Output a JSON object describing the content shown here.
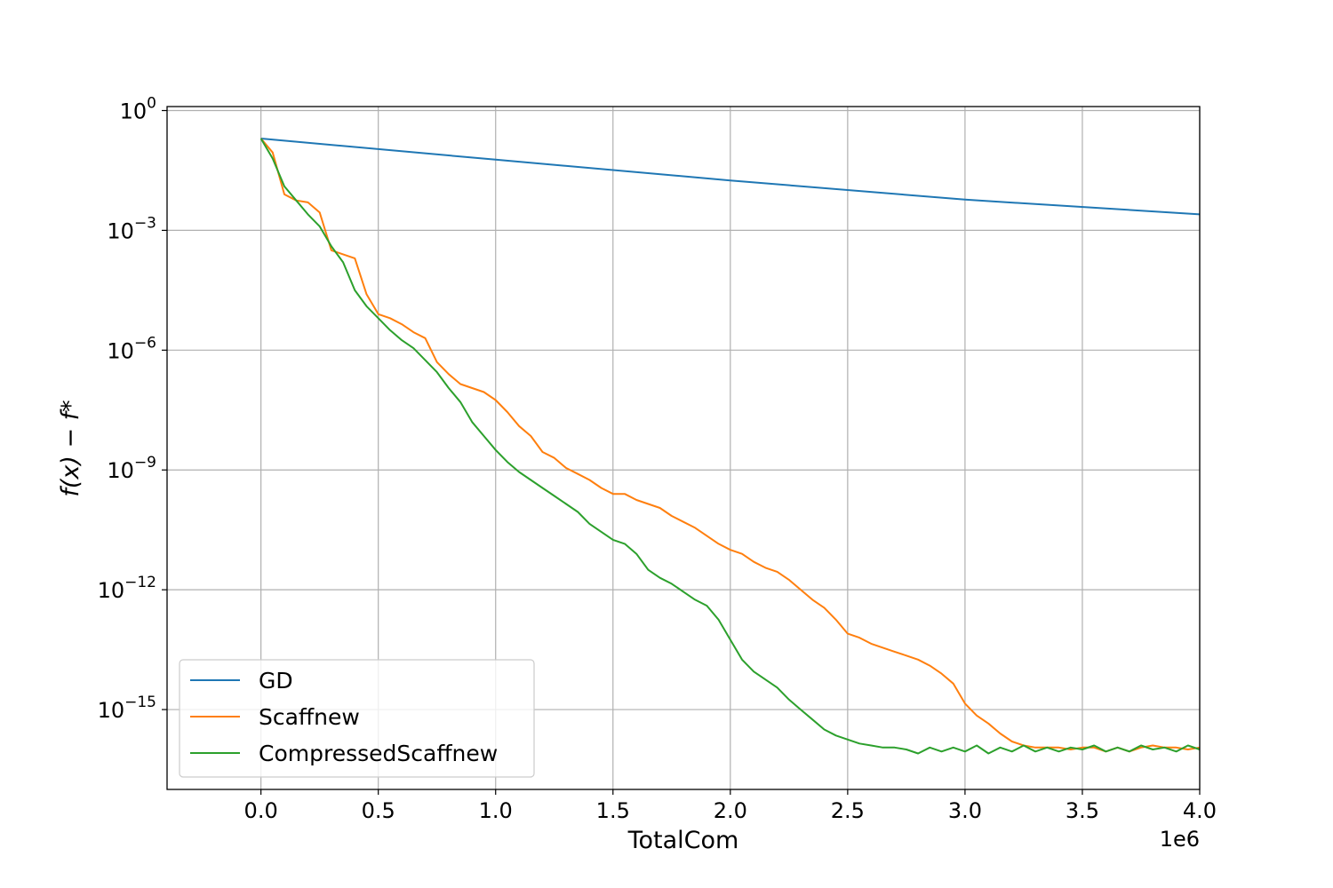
{
  "chart_data": {
    "type": "line",
    "title": "",
    "xlabel": "TotalCom",
    "ylabel": "f(x) − f*",
    "x_multiplier_label": "1e6",
    "xlim": [
      -0.4,
      4.0
    ],
    "ylim_log10": [
      -17,
      0.1
    ],
    "yscale": "log",
    "grid": true,
    "legend_position": "lower-left",
    "x_ticks": [
      0.0,
      0.5,
      1.0,
      1.5,
      2.0,
      2.5,
      3.0,
      3.5,
      4.0
    ],
    "x_tick_labels": [
      "0.0",
      "0.5",
      "1.0",
      "1.5",
      "2.0",
      "2.5",
      "3.0",
      "3.5",
      "4.0"
    ],
    "y_ticks": [
      {
        "base": "10",
        "exp": "0",
        "value_log10": 0
      },
      {
        "base": "10",
        "exp": "−3",
        "value_log10": -3
      },
      {
        "base": "10",
        "exp": "−6",
        "value_log10": -6
      },
      {
        "base": "10",
        "exp": "−9",
        "value_log10": -9
      },
      {
        "base": "10",
        "exp": "−12",
        "value_log10": -12
      },
      {
        "base": "10",
        "exp": "−15",
        "value_log10": -15
      }
    ],
    "series": [
      {
        "name": "GD",
        "color": "#1f77b4",
        "x": [
          0.0,
          1.0,
          2.0,
          3.0,
          4.0
        ],
        "log10_y": [
          -0.7,
          -1.23,
          -1.75,
          -2.23,
          -2.6
        ]
      },
      {
        "name": "Scaffnew",
        "color": "#ff7f0e",
        "x": [
          0.0,
          0.05,
          0.1,
          0.15,
          0.2,
          0.25,
          0.3,
          0.35,
          0.4,
          0.45,
          0.5,
          0.55,
          0.6,
          0.65,
          0.7,
          0.75,
          0.8,
          0.85,
          0.9,
          0.95,
          1.0,
          1.05,
          1.1,
          1.15,
          1.2,
          1.25,
          1.3,
          1.35,
          1.4,
          1.45,
          1.5,
          1.55,
          1.6,
          1.65,
          1.7,
          1.75,
          1.8,
          1.85,
          1.9,
          1.95,
          2.0,
          2.05,
          2.1,
          2.15,
          2.2,
          2.25,
          2.3,
          2.35,
          2.4,
          2.45,
          2.5,
          2.55,
          2.6,
          2.65,
          2.7,
          2.75,
          2.8,
          2.85,
          2.9,
          2.95,
          3.0,
          3.05,
          3.1,
          3.15,
          3.2,
          3.25,
          3.3,
          3.35,
          3.4,
          3.45,
          3.5,
          3.55,
          3.6,
          3.65,
          3.7,
          3.75,
          3.8,
          3.85,
          3.9,
          3.95,
          4.0
        ],
        "log10_y": [
          -0.7,
          -1.05,
          -2.1,
          -2.25,
          -2.3,
          -2.55,
          -3.5,
          -3.6,
          -3.7,
          -4.6,
          -5.1,
          -5.2,
          -5.35,
          -5.55,
          -5.7,
          -6.3,
          -6.6,
          -6.85,
          -6.95,
          -7.05,
          -7.25,
          -7.55,
          -7.9,
          -8.15,
          -8.55,
          -8.7,
          -8.95,
          -9.1,
          -9.25,
          -9.45,
          -9.6,
          -9.6,
          -9.75,
          -9.85,
          -9.95,
          -10.15,
          -10.3,
          -10.45,
          -10.65,
          -10.85,
          -11.0,
          -11.1,
          -11.3,
          -11.45,
          -11.55,
          -11.75,
          -12.0,
          -12.25,
          -12.45,
          -12.75,
          -13.1,
          -13.2,
          -13.35,
          -13.45,
          -13.55,
          -13.65,
          -13.75,
          -13.9,
          -14.1,
          -14.35,
          -14.85,
          -15.15,
          -15.35,
          -15.6,
          -15.8,
          -15.9,
          -15.95,
          -15.95,
          -15.95,
          -16.0,
          -15.95,
          -15.95,
          -16.05,
          -15.95,
          -16.05,
          -15.95,
          -15.9,
          -15.95,
          -15.95,
          -16.0,
          -15.95
        ]
      },
      {
        "name": "CompressedScaffnew",
        "color": "#2ca02c",
        "x": [
          0.0,
          0.05,
          0.1,
          0.15,
          0.2,
          0.25,
          0.3,
          0.35,
          0.4,
          0.45,
          0.5,
          0.55,
          0.6,
          0.65,
          0.7,
          0.75,
          0.8,
          0.85,
          0.9,
          0.95,
          1.0,
          1.05,
          1.1,
          1.15,
          1.2,
          1.25,
          1.3,
          1.35,
          1.4,
          1.45,
          1.5,
          1.55,
          1.6,
          1.65,
          1.7,
          1.75,
          1.8,
          1.85,
          1.9,
          1.95,
          2.0,
          2.05,
          2.1,
          2.15,
          2.2,
          2.25,
          2.3,
          2.35,
          2.4,
          2.45,
          2.5,
          2.55,
          2.6,
          2.65,
          2.7,
          2.75,
          2.8,
          2.85,
          2.9,
          2.95,
          3.0,
          3.05,
          3.1,
          3.15,
          3.2,
          3.25,
          3.3,
          3.35,
          3.4,
          3.45,
          3.5,
          3.55,
          3.6,
          3.65,
          3.7,
          3.75,
          3.8,
          3.85,
          3.9,
          3.95,
          4.0
        ],
        "log10_y": [
          -0.7,
          -1.2,
          -1.9,
          -2.25,
          -2.6,
          -2.9,
          -3.4,
          -3.8,
          -4.5,
          -4.9,
          -5.2,
          -5.5,
          -5.75,
          -5.95,
          -6.25,
          -6.55,
          -6.95,
          -7.3,
          -7.8,
          -8.15,
          -8.5,
          -8.8,
          -9.05,
          -9.25,
          -9.45,
          -9.65,
          -9.85,
          -10.05,
          -10.35,
          -10.55,
          -10.75,
          -10.85,
          -11.1,
          -11.5,
          -11.7,
          -11.85,
          -12.05,
          -12.25,
          -12.4,
          -12.75,
          -13.25,
          -13.75,
          -14.05,
          -14.25,
          -14.45,
          -14.75,
          -15.0,
          -15.25,
          -15.5,
          -15.65,
          -15.75,
          -15.85,
          -15.9,
          -15.95,
          -15.95,
          -16.0,
          -16.1,
          -15.95,
          -16.05,
          -15.95,
          -16.05,
          -15.9,
          -16.1,
          -15.95,
          -16.05,
          -15.9,
          -16.05,
          -15.95,
          -16.05,
          -15.95,
          -16.0,
          -15.9,
          -16.05,
          -15.95,
          -16.05,
          -15.9,
          -16.0,
          -15.95,
          -16.05,
          -15.9,
          -16.0
        ]
      }
    ]
  }
}
